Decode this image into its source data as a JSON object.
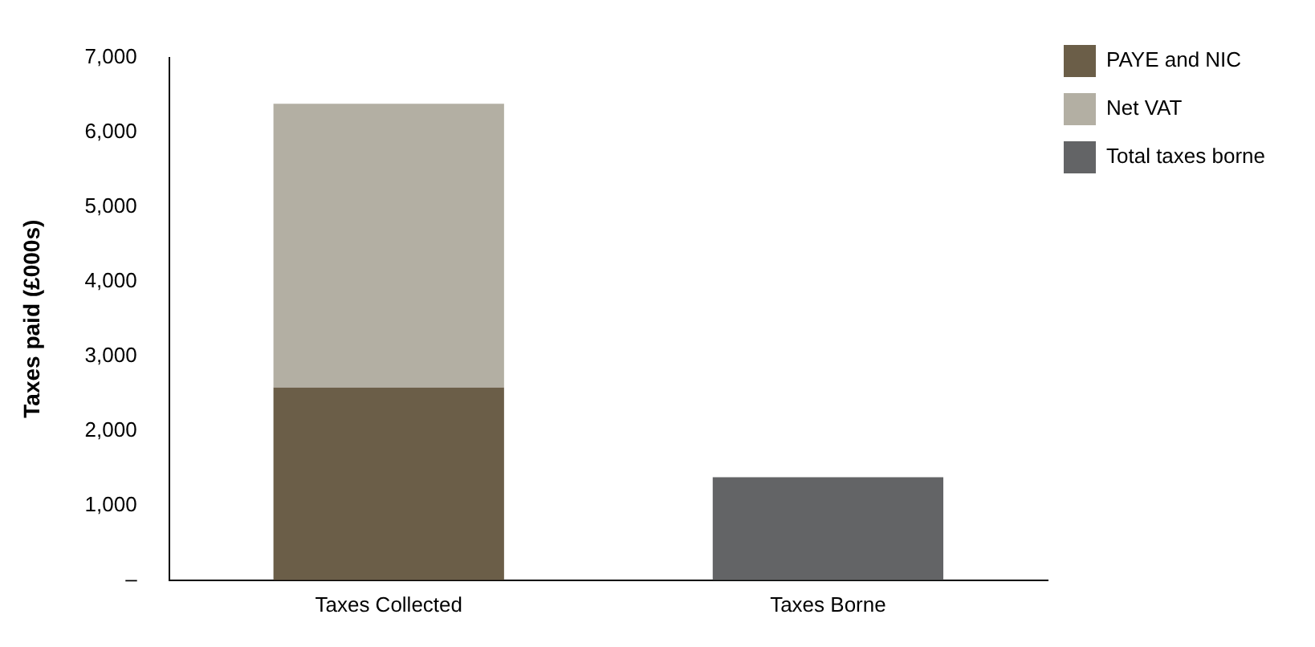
{
  "chart_data": {
    "type": "bar",
    "ylabel": "Taxes paid (£000s)",
    "categories": [
      "Taxes Collected",
      "Taxes Borne"
    ],
    "stacked": true,
    "series": [
      {
        "name": "PAYE and NIC",
        "color": "#6b5e48",
        "values": [
          2580,
          null
        ]
      },
      {
        "name": "Net VAT",
        "color": "#b3afa3",
        "values": [
          3800,
          null
        ]
      },
      {
        "name": "Total taxes borne",
        "color": "#636466",
        "values": [
          null,
          1380
        ]
      }
    ],
    "ylim": [
      0,
      7000
    ],
    "yticks": [
      {
        "value": 0,
        "label": "–"
      },
      {
        "value": 1000,
        "label": "1,000"
      },
      {
        "value": 2000,
        "label": "2,000"
      },
      {
        "value": 3000,
        "label": "3,000"
      },
      {
        "value": 4000,
        "label": "4,000"
      },
      {
        "value": 5000,
        "label": "5,000"
      },
      {
        "value": 6000,
        "label": "6,000"
      },
      {
        "value": 7000,
        "label": "7,000"
      }
    ],
    "grid": false,
    "legend": "top right"
  }
}
